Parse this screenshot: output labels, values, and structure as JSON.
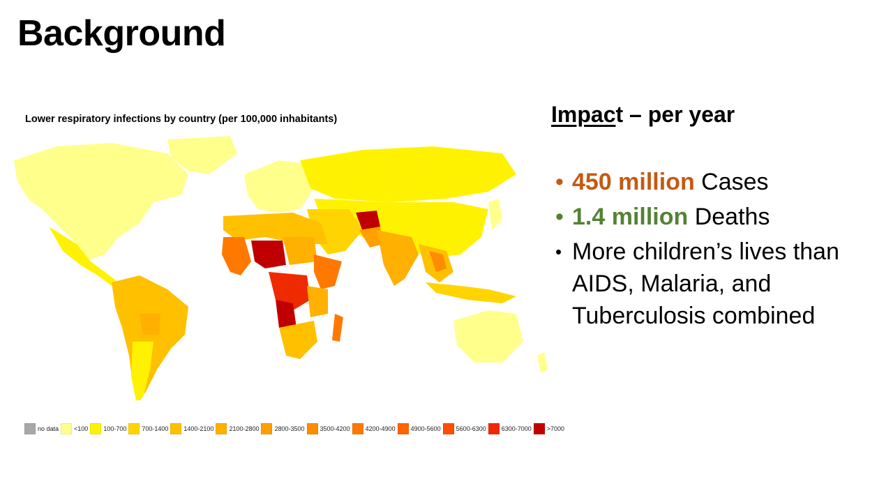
{
  "slide": {
    "title": "Background"
  },
  "map": {
    "title": "Lower respiratory infections by country (per 100,000 inhabitants)",
    "legend": [
      {
        "label": "no data",
        "color": "#a8a8a8"
      },
      {
        "label": "<100",
        "color": "#ffff8c"
      },
      {
        "label": "100-700",
        "color": "#fff200"
      },
      {
        "label": "700-1400",
        "color": "#ffd400"
      },
      {
        "label": "1400-2100",
        "color": "#ffc000"
      },
      {
        "label": "2100-2800",
        "color": "#ffb000"
      },
      {
        "label": "2800-3500",
        "color": "#ff9f00"
      },
      {
        "label": "3500-4200",
        "color": "#ff8c00"
      },
      {
        "label": "4200-4900",
        "color": "#ff7800"
      },
      {
        "label": "4900-5600",
        "color": "#ff6400"
      },
      {
        "label": "5600-6300",
        "color": "#ff4e00"
      },
      {
        "label": "6300-7000",
        "color": "#f02a00"
      },
      {
        "label": ">7000",
        "color": "#c00000"
      }
    ]
  },
  "impact": {
    "heading_underlined": "Impac",
    "heading_rest": "t – per year",
    "bullets": [
      {
        "highlight": "450 million",
        "text": " Cases",
        "color": "#c55a11"
      },
      {
        "highlight": "1.4 million",
        "text": " Deaths",
        "color": "#548235"
      },
      {
        "highlight": "",
        "text": "More children’s lives than AIDS, Malaria, and Tuberculosis combined",
        "color": "#000000"
      }
    ]
  }
}
